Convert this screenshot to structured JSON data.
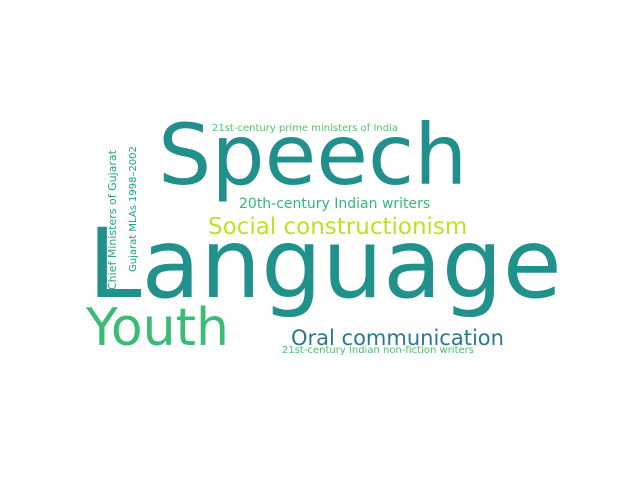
{
  "words": [
    {
      "text": "Language",
      "color": "#21918c"
    },
    {
      "text": "Speech",
      "color": "#21908d"
    },
    {
      "text": "Youth",
      "color": "#3bbb75"
    },
    {
      "text": "Social constructionism",
      "color": "#c2df23"
    },
    {
      "text": "Oral communication",
      "color": "#2a788e"
    },
    {
      "text": "20th-century Indian writers",
      "color": "#35b779"
    },
    {
      "text": "21st-century prime ministers of India",
      "color": "#52c569"
    },
    {
      "text": "21st-century Indian non-fiction writers",
      "color": "#4ac16d"
    },
    {
      "text": "Chief Ministers of Gujarat",
      "color": "#22a785"
    },
    {
      "text": "Gujarat MLAs 1998–2002",
      "color": "#1f9e89"
    }
  ]
}
